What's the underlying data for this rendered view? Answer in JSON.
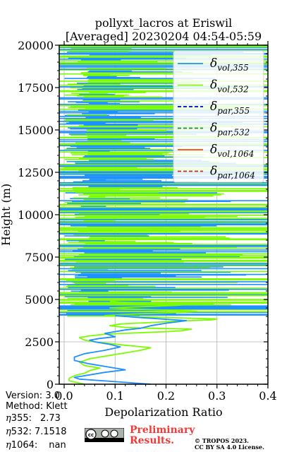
{
  "chart_data": {
    "type": "line",
    "title_line1": "pollyxt_lacros at Eriswil",
    "title_line2": "[Averaged] 20230204 04:54-05:59",
    "xlabel": "Depolarization Ratio",
    "ylabel": "Height (m)",
    "xlim": [
      0,
      0.4
    ],
    "ylim": [
      0,
      20000
    ],
    "xticks": [
      "0.0",
      "0.1",
      "0.2",
      "0.3",
      "0.4"
    ],
    "yticks": [
      "0",
      "2500",
      "5000",
      "7500",
      "10000",
      "12500",
      "15000",
      "17500",
      "20000"
    ],
    "grid": true,
    "legend_position": "top-right",
    "legend": [
      {
        "base": "δ",
        "sub": "vol,355",
        "color": "#1e90ff",
        "dash": "solid"
      },
      {
        "base": "δ",
        "sub": "vol,532",
        "color": "#7cfc00",
        "dash": "solid"
      },
      {
        "base": "δ",
        "sub": "par,355",
        "color": "#0000cd",
        "dash": "dashed"
      },
      {
        "base": "δ",
        "sub": "par,532",
        "color": "#228b22",
        "dash": "dashed"
      },
      {
        "base": "δ",
        "sub": "vol,1064",
        "color": "#ff4500",
        "dash": "solid"
      },
      {
        "base": "δ",
        "sub": "par,1064",
        "color": "#d62728",
        "dash": "dashed"
      }
    ],
    "series": [
      {
        "name": "δvol,532",
        "color": "#7cfc00",
        "x": [
          0.04,
          0.01,
          0.01,
          0.02,
          0.04,
          0.05,
          0.07,
          0.04,
          0.03,
          0.05,
          0.09,
          0.12,
          0.15,
          0.17,
          0.12,
          0.09,
          0.06,
          0.04,
          0.03,
          0.05,
          0.08,
          0.12,
          0.16,
          0.2,
          0.23,
          0.25,
          0.17,
          0.12,
          0.09,
          0.11,
          0.14,
          0.18,
          0.21,
          0.25,
          0.29,
          0.3,
          0.24,
          0.18,
          0.12,
          0.08,
          0.11,
          0.15,
          0.2,
          0.24,
          0.26,
          0.22,
          0.17,
          0.12,
          0.09,
          0.13,
          0.18,
          0.22,
          0.24,
          0.2,
          0.15,
          0.11,
          0.09
        ],
        "y": [
          0,
          200,
          350,
          500,
          650,
          800,
          950,
          1100,
          1300,
          1500,
          1700,
          1850,
          2000,
          2150,
          2300,
          2400,
          2500,
          2600,
          2750,
          2850,
          2950,
          3000,
          3050,
          3100,
          3150,
          3250,
          3300,
          3350,
          3450,
          3550,
          3600,
          3650,
          3700,
          3750,
          3800,
          3850,
          3900,
          3950,
          4000,
          4050,
          4100,
          4150,
          4200,
          4250,
          4300,
          4350,
          4400,
          4450,
          4500,
          4550,
          4600,
          4650,
          4700,
          4750,
          4800,
          4850,
          4900
        ]
      },
      {
        "name": "δvol,355",
        "color": "#1e90ff",
        "x": [
          0.17,
          0.1,
          0.03,
          0.02,
          0.05,
          0.08,
          0.12,
          0.09,
          0.05,
          0.02,
          0.02,
          0.04,
          0.08,
          0.11,
          0.09,
          0.06,
          0.05,
          0.07,
          0.1,
          0.09,
          0.08,
          0.1,
          0.12,
          0.15,
          0.17,
          0.2,
          0.24,
          0.19,
          0.14,
          0.1
        ],
        "y": [
          0,
          150,
          300,
          400,
          550,
          700,
          850,
          1000,
          1200,
          1400,
          1600,
          1800,
          2000,
          2200,
          2350,
          2500,
          2600,
          2700,
          2800,
          2900,
          3000,
          3100,
          3200,
          3300,
          3450,
          3600,
          3750,
          3850,
          3950,
          4050
        ]
      }
    ],
    "noisy_range_m": [
      4000,
      20000
    ]
  },
  "meta": {
    "version": "Version: 3.0",
    "method": "Method: Klett",
    "eta355_label": "355:",
    "eta355_value": "2.73",
    "eta532_label": "532:",
    "eta532_value": "7.1518",
    "eta1064_label": "1064:",
    "eta1064_value": "nan",
    "eta_symbol": "η"
  },
  "footer": {
    "preliminary_line1": "Preliminary",
    "preliminary_line2": "Results.",
    "copyright_line1": "© TROPOS 2023.",
    "copyright_line2": "CC BY SA 4.0 License.",
    "cc_badge_text": "cc"
  }
}
